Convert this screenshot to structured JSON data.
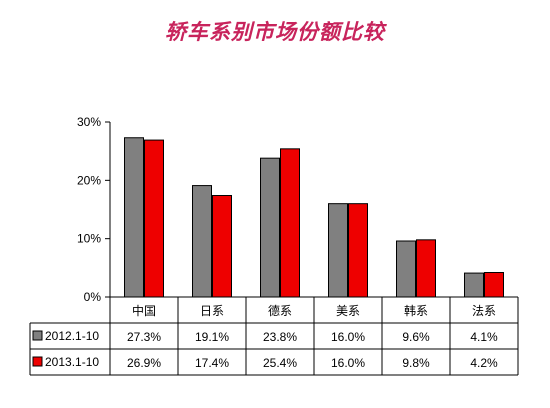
{
  "chart_data": {
    "type": "bar",
    "title": "轿车系别市场份额比较",
    "categories": [
      "中国",
      "日系",
      "德系",
      "美系",
      "韩系",
      "法系"
    ],
    "series": [
      {
        "name": "2012.1-10",
        "color": "#808080",
        "values": [
          27.3,
          19.1,
          23.8,
          16.0,
          9.6,
          4.1
        ],
        "labels": [
          "27.3%",
          "19.1%",
          "23.8%",
          "16.0%",
          "9.6%",
          "4.1%"
        ]
      },
      {
        "name": "2013.1-10",
        "color": "#ee0000",
        "values": [
          26.9,
          17.4,
          25.4,
          16.0,
          9.8,
          4.2
        ],
        "labels": [
          "26.9%",
          "17.4%",
          "25.4%",
          "16.0%",
          "9.8%",
          "4.2%"
        ]
      }
    ],
    "yticks": [
      "0%",
      "10%",
      "20%",
      "30%"
    ],
    "ylim": [
      0,
      30
    ],
    "legend": "data-table",
    "grid": false
  }
}
